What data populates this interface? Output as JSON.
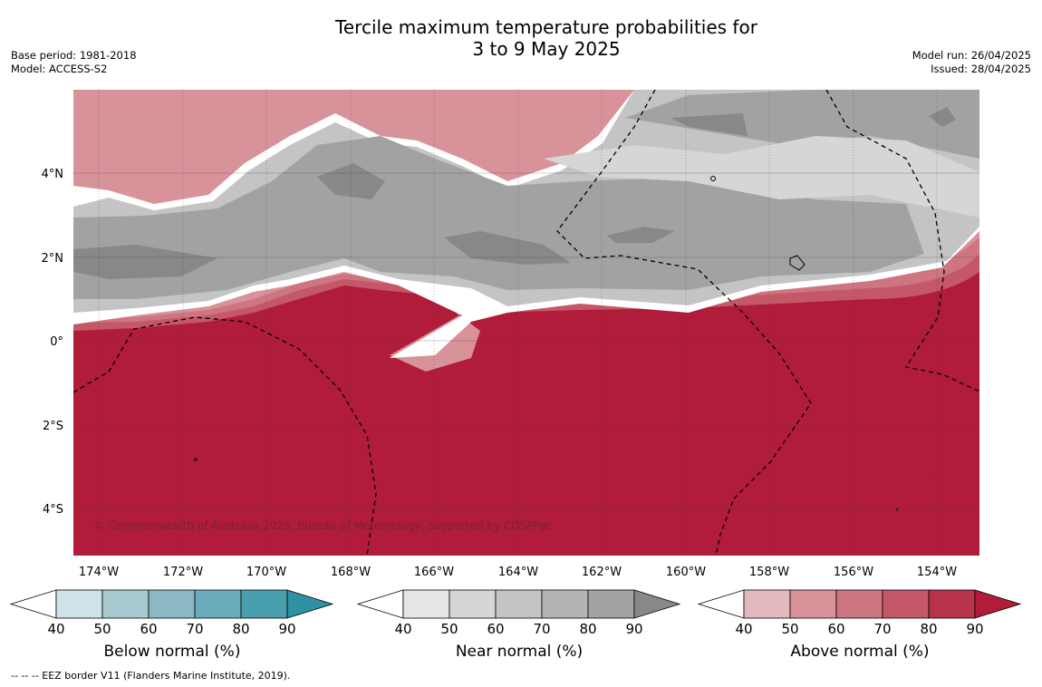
{
  "header": {
    "title_line1": "Tercile maximum temperature probabilities for",
    "title_line2": "3 to 9 May 2025",
    "base_period": "Base period: 1981-2018",
    "model": "Model: ACCESS-S2",
    "model_run": "Model run: 26/04/2025",
    "issued": "Issued: 28/04/2025"
  },
  "map": {
    "lon_labels": [
      "174°W",
      "172°W",
      "170°W",
      "168°W",
      "166°W",
      "164°W",
      "162°W",
      "160°W",
      "158°W",
      "156°W",
      "154°W"
    ],
    "lat_labels": [
      "4°N",
      "2°N",
      "0°",
      "2°S",
      "4°S"
    ],
    "copyright": "© Commonwealth of Australia 2025, Bureau of Meteorology, supported by COSPPac"
  },
  "colorbars": [
    {
      "label": "Below normal (%)",
      "ticks": [
        "40",
        "50",
        "60",
        "70",
        "80",
        "90"
      ],
      "colors": [
        "#ffffff",
        "#cce3e9",
        "#a8c9cf",
        "#8bb8c4",
        "#6aacbb",
        "#4a9fae",
        "#2f91a3"
      ]
    },
    {
      "label": "Near normal (%)",
      "ticks": [
        "40",
        "50",
        "60",
        "70",
        "80",
        "90"
      ],
      "colors": [
        "#ffffff",
        "#e6e6e6",
        "#d6d6d6",
        "#c4c4c4",
        "#b4b4b4",
        "#a2a2a2",
        "#888888"
      ]
    },
    {
      "label": "Above normal (%)",
      "ticks": [
        "40",
        "50",
        "60",
        "70",
        "80",
        "90"
      ],
      "colors": [
        "#ffffff",
        "#e3b8be",
        "#d8929a",
        "#cd7580",
        "#c45868",
        "#b8334a",
        "#b01c39"
      ]
    }
  ],
  "footnote": "--  --  -- EEZ border V11 (Flanders Marine Institute, 2019)."
}
